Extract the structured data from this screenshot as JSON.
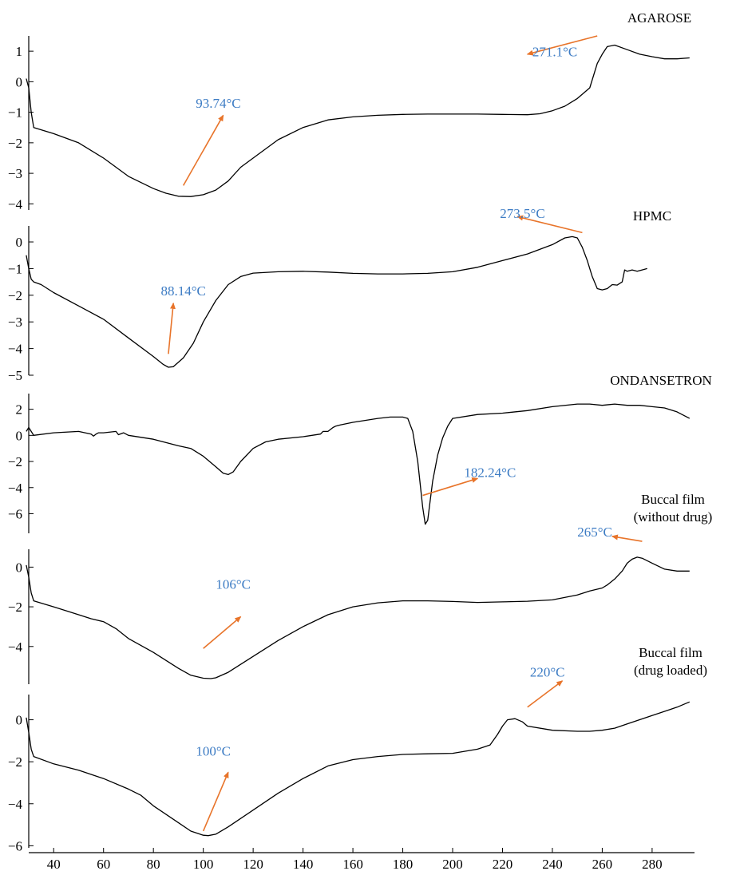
{
  "chart_data": {
    "type": "line",
    "xlim": [
      30,
      297
    ],
    "x_ticks": [
      40,
      60,
      80,
      100,
      120,
      140,
      160,
      180,
      200,
      220,
      240,
      260,
      280
    ],
    "colors": {
      "curve": "#000000",
      "arrow": "#e8742a",
      "annotation_text": "#3d7cc4"
    },
    "panels": [
      {
        "label_lines": [
          "AGAROSE"
        ],
        "y_ticks": [
          1,
          0,
          -1,
          -2,
          -3,
          -4
        ],
        "ylim": [
          -4.2,
          1.5
        ],
        "series": [
          {
            "x": [
              29,
              30,
              31,
              32,
              40,
              50,
              60,
              70,
              80,
              85,
              90,
              95,
              100,
              105,
              110,
              115,
              120,
              130,
              140,
              150,
              160,
              170,
              180,
              190,
              200,
              210,
              220,
              230,
              235,
              240,
              245,
              250,
              255,
              258,
              260,
              262,
              265,
              270,
              275,
              280,
              285,
              290,
              295
            ],
            "y": [
              0.1,
              -0.2,
              -1.0,
              -1.5,
              -1.7,
              -2.0,
              -2.5,
              -3.1,
              -3.5,
              -3.65,
              -3.75,
              -3.76,
              -3.7,
              -3.55,
              -3.25,
              -2.8,
              -2.5,
              -1.9,
              -1.5,
              -1.25,
              -1.15,
              -1.1,
              -1.07,
              -1.06,
              -1.06,
              -1.06,
              -1.07,
              -1.08,
              -1.05,
              -0.95,
              -0.8,
              -0.55,
              -0.2,
              0.6,
              0.9,
              1.15,
              1.2,
              1.05,
              0.9,
              0.82,
              0.75,
              0.75,
              0.78
            ]
          }
        ],
        "annotations": [
          {
            "text": "93.74°C",
            "text_x": 106,
            "text_y": -0.85,
            "arrow_from": [
              92,
              -3.4
            ],
            "arrow_to": [
              108,
              -1.1
            ]
          },
          {
            "text": "271.1°C",
            "text_x": 241,
            "text_y": 0.83,
            "arrow_from": [
              258,
              1.5
            ],
            "arrow_to": [
              230,
              0.9
            ]
          }
        ]
      },
      {
        "label_lines": [
          "HPMC"
        ],
        "y_ticks": [
          0,
          -1,
          -2,
          -3,
          -4,
          -5
        ],
        "ylim": [
          -5.0,
          0.6
        ],
        "series": [
          {
            "x": [
              29,
              30,
              31,
              32,
              35,
              40,
              50,
              60,
              70,
              80,
              84,
              86,
              88,
              92,
              96,
              100,
              105,
              110,
              115,
              120,
              130,
              140,
              150,
              160,
              170,
              180,
              190,
              200,
              210,
              220,
              230,
              240,
              245,
              248,
              250,
              252,
              254,
              256,
              258,
              260,
              262,
              264,
              266,
              268,
              269,
              270,
              272,
              274,
              276,
              278
            ],
            "y": [
              -0.5,
              -1.0,
              -1.4,
              -1.5,
              -1.6,
              -1.9,
              -2.4,
              -2.9,
              -3.6,
              -4.3,
              -4.6,
              -4.7,
              -4.68,
              -4.35,
              -3.8,
              -3.0,
              -2.2,
              -1.6,
              -1.3,
              -1.17,
              -1.12,
              -1.1,
              -1.13,
              -1.18,
              -1.2,
              -1.2,
              -1.18,
              -1.12,
              -0.95,
              -0.7,
              -0.45,
              -0.1,
              0.15,
              0.2,
              0.15,
              -0.2,
              -0.7,
              -1.3,
              -1.75,
              -1.8,
              -1.75,
              -1.6,
              -1.62,
              -1.5,
              -1.05,
              -1.1,
              -1.05,
              -1.1,
              -1.05,
              -1.0
            ]
          }
        ],
        "annotations": [
          {
            "text": "88.14°C",
            "text_x": 92,
            "text_y": -2.0,
            "arrow_from": [
              86,
              -4.2
            ],
            "arrow_to": [
              88,
              -2.3
            ]
          },
          {
            "text": "273.5°C",
            "text_x": 228,
            "text_y": 0.9,
            "arrow_from": [
              252,
              0.35
            ],
            "arrow_to": [
              226,
              0.95
            ]
          }
        ]
      },
      {
        "label_lines": [
          "ONDANSETRON"
        ],
        "y_ticks": [
          2,
          0,
          -2,
          -4,
          -6
        ],
        "ylim": [
          -7.5,
          3.2
        ],
        "series": [
          {
            "x": [
              29,
              30,
              31,
              32,
              40,
              50,
              55,
              56,
              57,
              58,
              60,
              65,
              66,
              68,
              70,
              80,
              90,
              95,
              100,
              105,
              108,
              110,
              112,
              115,
              120,
              125,
              130,
              140,
              147,
              148,
              150,
              152,
              153,
              155,
              160,
              170,
              175,
              180,
              182,
              184,
              186,
              188,
              189,
              190,
              192,
              194,
              196,
              198,
              200,
              210,
              220,
              230,
              240,
              250,
              255,
              260,
              265,
              270,
              275,
              280,
              285,
              290,
              295
            ],
            "y": [
              0.3,
              0.6,
              0.3,
              0.0,
              0.2,
              0.3,
              0.1,
              -0.05,
              0.1,
              0.2,
              0.2,
              0.3,
              0.05,
              0.2,
              0.0,
              -0.3,
              -0.8,
              -1.0,
              -1.6,
              -2.4,
              -2.9,
              -3.0,
              -2.8,
              -2.0,
              -1.0,
              -0.5,
              -0.3,
              -0.1,
              0.1,
              0.3,
              0.3,
              0.6,
              0.7,
              0.8,
              1.0,
              1.3,
              1.4,
              1.4,
              1.3,
              0.3,
              -2.0,
              -5.5,
              -6.8,
              -6.5,
              -3.5,
              -1.5,
              -0.2,
              0.7,
              1.3,
              1.6,
              1.7,
              1.9,
              2.2,
              2.4,
              2.4,
              2.3,
              2.4,
              2.3,
              2.3,
              2.2,
              2.1,
              1.8,
              1.3
            ]
          }
        ],
        "annotations": [
          {
            "text": "182.24°C",
            "text_x": 215,
            "text_y": -3.2,
            "arrow_from": [
              188,
              -4.6
            ],
            "arrow_to": [
              210,
              -3.3
            ]
          }
        ]
      },
      {
        "label_lines": [
          "Buccal film",
          "(without drug)"
        ],
        "y_ticks": [
          0,
          -2,
          -4
        ],
        "ylim": [
          -5.9,
          0.9
        ],
        "series": [
          {
            "x": [
              29,
              30,
              31,
              32,
              40,
              50,
              55,
              60,
              65,
              70,
              80,
              90,
              95,
              100,
              103,
              105,
              110,
              120,
              130,
              140,
              150,
              160,
              170,
              180,
              190,
              200,
              210,
              220,
              230,
              240,
              250,
              255,
              260,
              262,
              265,
              268,
              270,
              272,
              274,
              276,
              280,
              285,
              290,
              295
            ],
            "y": [
              0.1,
              -0.5,
              -1.3,
              -1.7,
              -2.0,
              -2.4,
              -2.6,
              -2.75,
              -3.1,
              -3.6,
              -4.3,
              -5.1,
              -5.45,
              -5.6,
              -5.62,
              -5.58,
              -5.3,
              -4.5,
              -3.7,
              -3.0,
              -2.4,
              -2.0,
              -1.8,
              -1.7,
              -1.7,
              -1.73,
              -1.78,
              -1.75,
              -1.72,
              -1.65,
              -1.4,
              -1.2,
              -1.05,
              -0.9,
              -0.6,
              -0.2,
              0.2,
              0.4,
              0.5,
              0.45,
              0.2,
              -0.1,
              -0.2,
              -0.2
            ]
          }
        ],
        "annotations": [
          {
            "text": "106°C",
            "text_x": 112,
            "text_y": -1.1,
            "arrow_from": [
              100,
              -4.1
            ],
            "arrow_to": [
              115,
              -2.5
            ]
          },
          {
            "text": "265°C",
            "text_x": 257,
            "text_y": 1.55,
            "arrow_from": [
              276,
              1.3
            ],
            "arrow_to": [
              264,
              1.55
            ]
          }
        ]
      },
      {
        "label_lines": [
          "Buccal film",
          "(drug loaded)"
        ],
        "y_ticks": [
          0,
          -2,
          -4,
          -6
        ],
        "ylim": [
          -6.1,
          1.2
        ],
        "series": [
          {
            "x": [
              29,
              30,
              31,
              32,
              40,
              50,
              60,
              70,
              75,
              80,
              90,
              95,
              100,
              102,
              105,
              110,
              120,
              130,
              140,
              150,
              160,
              170,
              180,
              190,
              200,
              210,
              215,
              218,
              220,
              222,
              225,
              228,
              230,
              240,
              250,
              255,
              260,
              265,
              270,
              280,
              290,
              295
            ],
            "y": [
              0.1,
              -0.6,
              -1.4,
              -1.75,
              -2.1,
              -2.4,
              -2.8,
              -3.3,
              -3.6,
              -4.1,
              -4.9,
              -5.3,
              -5.5,
              -5.52,
              -5.45,
              -5.1,
              -4.3,
              -3.5,
              -2.8,
              -2.2,
              -1.9,
              -1.75,
              -1.65,
              -1.62,
              -1.6,
              -1.4,
              -1.2,
              -0.7,
              -0.3,
              0.0,
              0.05,
              -0.1,
              -0.3,
              -0.5,
              -0.55,
              -0.55,
              -0.5,
              -0.4,
              -0.2,
              0.2,
              0.6,
              0.85
            ]
          }
        ],
        "annotations": [
          {
            "text": "100°C",
            "text_x": 104,
            "text_y": -1.7,
            "arrow_from": [
              100,
              -5.3
            ],
            "arrow_to": [
              110,
              -2.5
            ]
          },
          {
            "text": "220°C",
            "text_x": 238,
            "text_y": 2.05,
            "arrow_from": [
              230,
              0.6
            ],
            "arrow_to": [
              244,
              1.85
            ]
          }
        ]
      }
    ]
  }
}
